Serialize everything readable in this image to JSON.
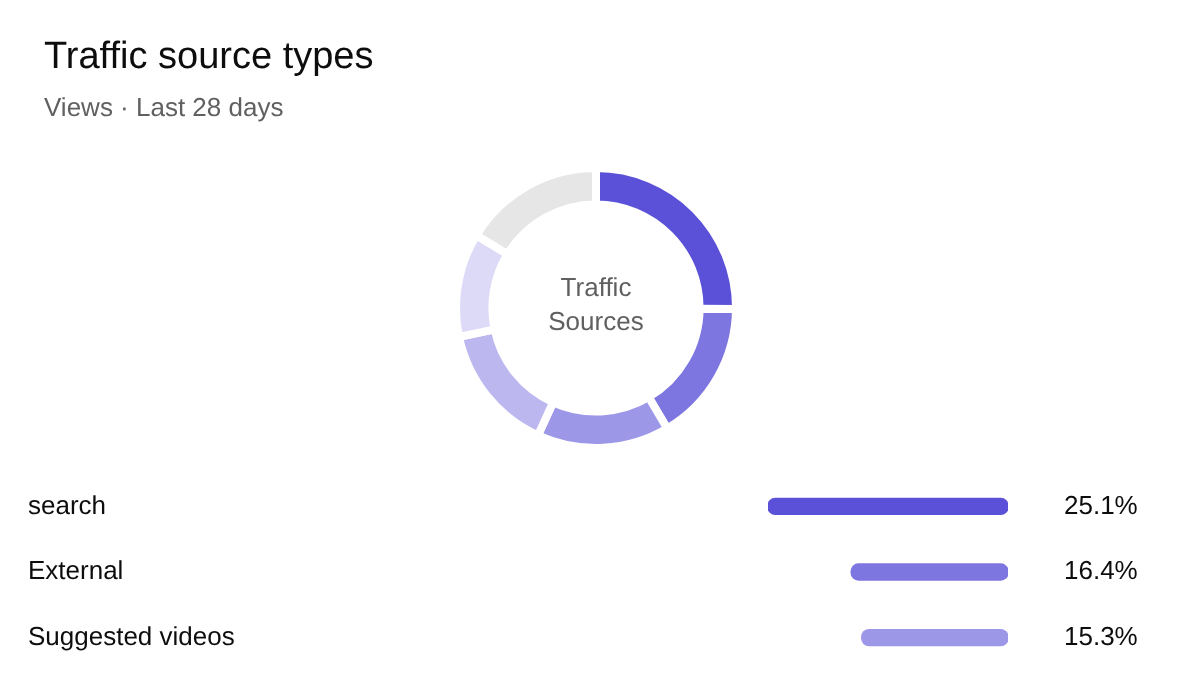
{
  "chart_data": [
    {
      "type": "donut",
      "title": "Traffic source types",
      "subtitle": "Views · Last 28 days",
      "categories": [
        null,
        null,
        null,
        null,
        null,
        null
      ],
      "values": [
        25.1,
        16.4,
        15.3,
        14.9,
        12,
        16.3
      ],
      "colors": [
        "#5b51d8",
        "#7d76e0",
        "#9d97e8",
        "#bcb8ef",
        "#dcdaf7",
        "#e6e6e6"
      ],
      "annotations": [
        "Traffic Sources"
      ],
      "legend": false
    },
    {
      "type": "bar",
      "orientation": "horizontal",
      "categories": [
        "search",
        "External",
        "Suggested videos"
      ],
      "values": [
        25.1,
        16.4,
        15.3
      ],
      "colors": [
        "#5b51d8",
        "#7d76e0",
        "#9d97e8"
      ],
      "value_labels": [
        "25.1%",
        "16.4%",
        "15.3%"
      ],
      "tick_labels": "y",
      "legend": false
    }
  ]
}
